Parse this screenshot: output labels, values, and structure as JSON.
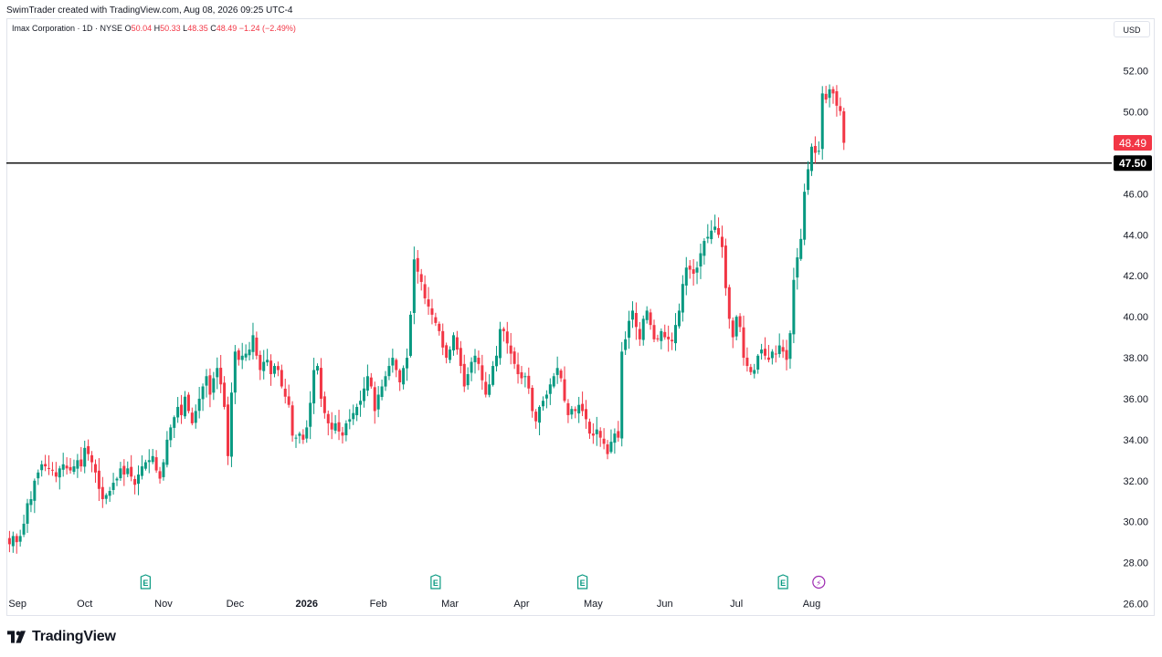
{
  "attribution": "SwimTrader created with TradingView.com, Aug 08, 2026 09:25 UTC-4",
  "legend": {
    "symbol": "Imax Corporation · 1D · NYSE",
    "open_label": "O",
    "open": "50.04",
    "high_label": "H",
    "high": "50.33",
    "low_label": "L",
    "low": "48.35",
    "close_label": "C",
    "close": "48.49",
    "change": "−1.24 (−2.49%)"
  },
  "currency": "USD",
  "brand": "TradingView",
  "colors": {
    "up": "#089981",
    "down": "#f23645",
    "hline": "#000000",
    "event_earnings": "#089981",
    "event_other": "#9c27b0"
  },
  "chart_data": {
    "type": "candlestick",
    "symbol": "Imax Corporation",
    "interval": "1D",
    "exchange": "NYSE",
    "currency": "USD",
    "ylim": [
      26,
      53.5
    ],
    "y_ticks": [
      "26.00",
      "28.00",
      "30.00",
      "32.00",
      "34.00",
      "36.00",
      "38.00",
      "40.00",
      "42.00",
      "44.00",
      "46.00",
      "50.00",
      "52.00"
    ],
    "x_ticks": [
      "Sep",
      "Oct",
      "Nov",
      "Dec",
      "2026",
      "Feb",
      "Mar",
      "Apr",
      "May",
      "Jun",
      "Jul",
      "Aug"
    ],
    "x_tick_index": [
      0,
      21,
      43,
      63,
      83,
      103,
      123,
      143,
      163,
      183,
      203,
      224
    ],
    "last_price": "48.49",
    "horizontal_line": {
      "value": 47.5,
      "label": "47.50"
    },
    "event_markers": [
      {
        "index": 38,
        "label": "E",
        "kind": "earnings"
      },
      {
        "index": 119,
        "label": "E",
        "kind": "earnings"
      },
      {
        "index": 160,
        "label": "E",
        "kind": "earnings"
      },
      {
        "index": 216,
        "label": "E",
        "kind": "earnings"
      },
      {
        "index": 226,
        "label": "⚡",
        "kind": "event"
      }
    ],
    "closes": [
      28.9,
      29.3,
      29.0,
      29.3,
      29.9,
      30.9,
      31.1,
      32.0,
      32.4,
      32.8,
      32.7,
      32.6,
      32.5,
      32.2,
      32.6,
      32.8,
      32.6,
      32.5,
      32.7,
      33.0,
      32.7,
      33.6,
      33.3,
      32.9,
      32.4,
      31.6,
      31.1,
      31.3,
      31.5,
      31.9,
      32.1,
      32.6,
      32.3,
      32.6,
      32.2,
      31.8,
      32.3,
      32.7,
      32.9,
      33.0,
      33.2,
      32.5,
      32.1,
      32.9,
      34.0,
      34.6,
      35.1,
      35.6,
      35.2,
      36.1,
      35.4,
      34.8,
      35.4,
      36.0,
      36.6,
      37.1,
      36.2,
      37.0,
      37.5,
      36.7,
      35.6,
      33.2,
      36.3,
      38.3,
      37.9,
      38.1,
      38.2,
      38.4,
      39.1,
      38.1,
      37.4,
      37.8,
      37.9,
      37.2,
      37.6,
      37.4,
      36.6,
      36.1,
      35.7,
      34.2,
      34.1,
      34.3,
      34.0,
      34.6,
      35.8,
      37.4,
      37.6,
      36.0,
      35.3,
      34.8,
      34.5,
      34.8,
      34.4,
      34.2,
      34.8,
      35.0,
      35.3,
      35.6,
      35.9,
      36.5,
      37.1,
      36.6,
      35.4,
      36.2,
      36.6,
      37.1,
      37.6,
      38.0,
      37.4,
      36.8,
      37.5,
      38.0,
      40.1,
      42.8,
      42.2,
      41.7,
      40.9,
      40.5,
      40.1,
      39.7,
      39.3,
      38.5,
      38.0,
      38.4,
      39.1,
      38.4,
      37.6,
      36.6,
      37.2,
      37.8,
      38.1,
      37.7,
      36.9,
      36.2,
      36.7,
      37.6,
      38.1,
      39.4,
      39.3,
      38.7,
      38.2,
      37.7,
      37.2,
      37.0,
      37.1,
      36.5,
      35.4,
      34.9,
      35.6,
      35.9,
      36.2,
      36.7,
      37.1,
      37.5,
      37.0,
      35.9,
      35.2,
      35.5,
      35.4,
      35.7,
      35.4,
      35.0,
      34.3,
      34.2,
      34.5,
      34.1,
      33.8,
      33.3,
      33.9,
      34.3,
      34.1,
      38.3,
      38.9,
      39.8,
      40.3,
      39.5,
      38.9,
      39.9,
      40.3,
      39.6,
      38.9,
      38.9,
      39.3,
      39.0,
      38.9,
      38.8,
      39.6,
      40.3,
      41.6,
      42.4,
      42.3,
      42.1,
      42.4,
      43.1,
      43.7,
      43.9,
      44.2,
      44.4,
      44.0,
      43.4,
      41.4,
      39.9,
      39.0,
      40.0,
      39.5,
      38.0,
      37.6,
      37.3,
      37.4,
      38.1,
      38.4,
      38.1,
      37.9,
      38.3,
      38.2,
      38.6,
      38.3,
      37.9,
      39.2,
      41.8,
      42.9,
      43.8,
      46.1,
      47.2,
      48.3,
      48.0,
      48.1,
      50.9,
      50.6,
      51.1,
      50.9,
      50.3,
      50.04,
      48.49
    ]
  }
}
